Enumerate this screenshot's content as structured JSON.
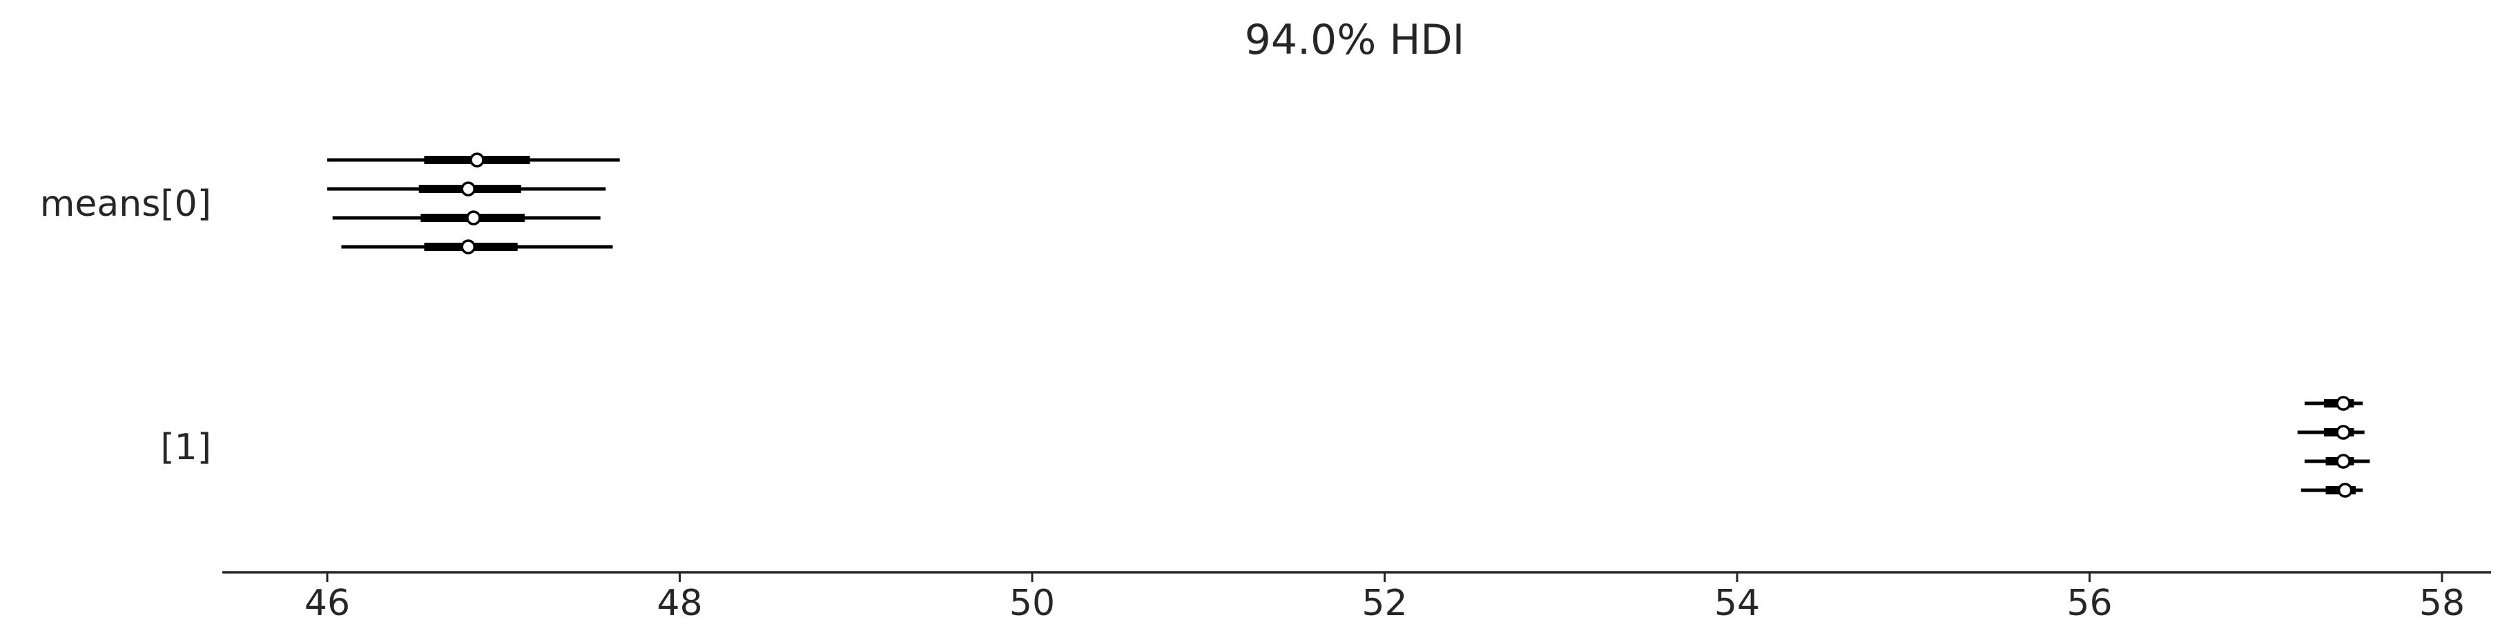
{
  "chart_data": {
    "type": "forest",
    "title": "94.0% HDI",
    "xlabel": "",
    "ylabel": "",
    "xlim": [
      45.4,
      58.3
    ],
    "xticks": [
      46,
      48,
      50,
      52,
      54,
      56,
      58
    ],
    "grid": false,
    "legend": "none",
    "colors": {
      "line": "#000000",
      "marker_fill": "#ffffff",
      "text": "#262626"
    },
    "rows": [
      {
        "label": "means[0]",
        "chains": [
          {
            "hdi_94": [
              46.0,
              47.66
            ],
            "iqr": [
              46.55,
              47.15
            ],
            "median": 46.85
          },
          {
            "hdi_94": [
              46.0,
              47.58
            ],
            "iqr": [
              46.52,
              47.1
            ],
            "median": 46.8
          },
          {
            "hdi_94": [
              46.03,
              47.55
            ],
            "iqr": [
              46.53,
              47.12
            ],
            "median": 46.83
          },
          {
            "hdi_94": [
              46.08,
              47.62
            ],
            "iqr": [
              46.55,
              47.08
            ],
            "median": 46.8
          }
        ]
      },
      {
        "label": "[1]",
        "chains": [
          {
            "hdi_94": [
              57.22,
              57.55
            ],
            "iqr": [
              57.33,
              57.5
            ],
            "median": 57.44
          },
          {
            "hdi_94": [
              57.18,
              57.56
            ],
            "iqr": [
              57.33,
              57.5
            ],
            "median": 57.44
          },
          {
            "hdi_94": [
              57.22,
              57.59
            ],
            "iqr": [
              57.34,
              57.5
            ],
            "median": 57.44
          },
          {
            "hdi_94": [
              57.2,
              57.55
            ],
            "iqr": [
              57.34,
              57.51
            ],
            "median": 57.45
          }
        ]
      }
    ]
  }
}
